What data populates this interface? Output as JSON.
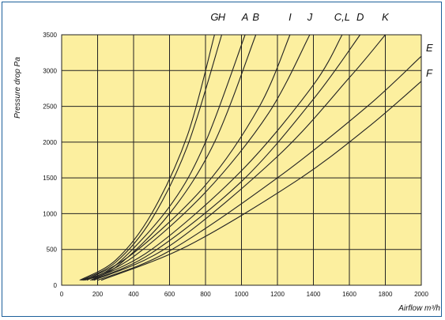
{
  "chart_data": {
    "type": "line",
    "xlabel": "Airflow m³/h",
    "ylabel": "Pressure drop Pa",
    "xlim": [
      0,
      2000
    ],
    "ylim": [
      0,
      3500
    ],
    "x_ticks": [
      "0",
      "200",
      "400",
      "600",
      "800",
      "1000",
      "1200",
      "1400",
      "1600",
      "1800",
      "2000"
    ],
    "y_ticks": [
      "0",
      "500",
      "1000",
      "1500",
      "2000",
      "2500",
      "3000",
      "3500"
    ],
    "grid": true,
    "plot_background": "#fcef9f",
    "grid_color": "#222222",
    "line_color": "#222222",
    "series": [
      {
        "name": "G",
        "points": [
          [
            100,
            70
          ],
          [
            300,
            350
          ],
          [
            500,
            1000
          ],
          [
            700,
            2100
          ],
          [
            850,
            3500
          ]
        ]
      },
      {
        "name": "H",
        "points": [
          [
            110,
            70
          ],
          [
            300,
            320
          ],
          [
            500,
            920
          ],
          [
            700,
            1950
          ],
          [
            890,
            3500
          ]
        ]
      },
      {
        "name": "A",
        "points": [
          [
            110,
            70
          ],
          [
            300,
            280
          ],
          [
            600,
            1100
          ],
          [
            800,
            2000
          ],
          [
            1020,
            3500
          ]
        ]
      },
      {
        "name": "B",
        "points": [
          [
            120,
            70
          ],
          [
            300,
            250
          ],
          [
            600,
            1000
          ],
          [
            850,
            2000
          ],
          [
            1080,
            3500
          ]
        ]
      },
      {
        "name": "I",
        "points": [
          [
            130,
            70
          ],
          [
            400,
            450
          ],
          [
            800,
            1400
          ],
          [
            1100,
            2500
          ],
          [
            1270,
            3500
          ]
        ]
      },
      {
        "name": "J",
        "points": [
          [
            140,
            70
          ],
          [
            400,
            400
          ],
          [
            800,
            1300
          ],
          [
            1150,
            2400
          ],
          [
            1380,
            3500
          ]
        ]
      },
      {
        "name": "C,L",
        "points": [
          [
            160,
            70
          ],
          [
            500,
            500
          ],
          [
            1000,
            1600
          ],
          [
            1400,
            2800
          ],
          [
            1560,
            3500
          ]
        ]
      },
      {
        "name": "D",
        "points": [
          [
            170,
            70
          ],
          [
            500,
            450
          ],
          [
            1000,
            1450
          ],
          [
            1400,
            2600
          ],
          [
            1660,
            3500
          ]
        ]
      },
      {
        "name": "K",
        "points": [
          [
            180,
            70
          ],
          [
            600,
            550
          ],
          [
            1200,
            1800
          ],
          [
            1600,
            2900
          ],
          [
            1800,
            3500
          ]
        ]
      },
      {
        "name": "E",
        "points": [
          [
            200,
            70
          ],
          [
            600,
            480
          ],
          [
            1200,
            1500
          ],
          [
            1700,
            2500
          ],
          [
            2000,
            3200
          ]
        ]
      },
      {
        "name": "F",
        "points": [
          [
            220,
            70
          ],
          [
            700,
            550
          ],
          [
            1300,
            1450
          ],
          [
            1700,
            2200
          ],
          [
            2000,
            2850
          ]
        ]
      }
    ]
  }
}
